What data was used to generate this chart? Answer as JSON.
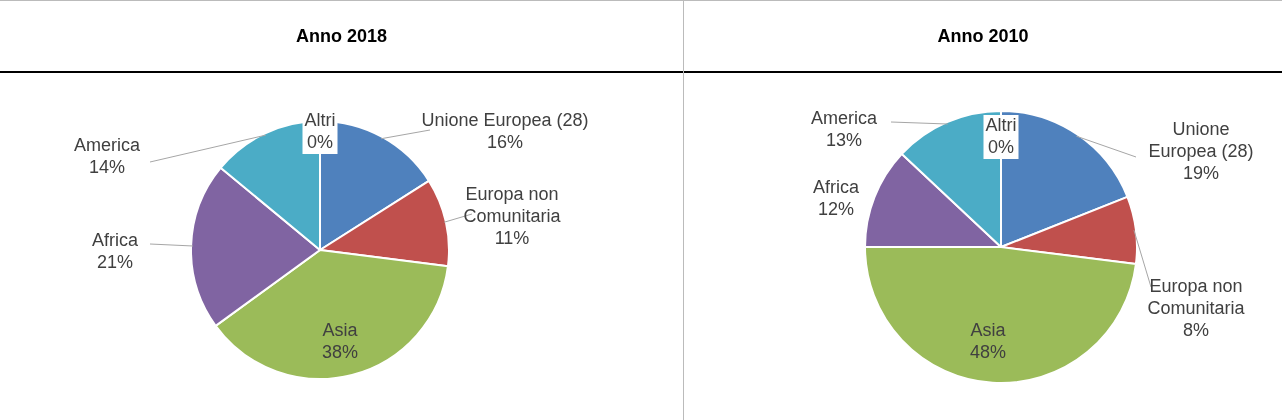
{
  "chart_data": [
    {
      "type": "pie",
      "title": "Anno 2018",
      "categories": [
        "Unione Europea (28)",
        "Europa non Comunitaria",
        "Asia",
        "Africa",
        "America",
        "Altri"
      ],
      "values": [
        16,
        11,
        38,
        21,
        14,
        0
      ],
      "value_labels": [
        "16%",
        "11%",
        "38%",
        "21%",
        "14%",
        "0%"
      ],
      "colors": [
        "#4f81bd",
        "#c0504d",
        "#9bbb59",
        "#8064a2",
        "#4bacc6",
        "#f79646"
      ],
      "legend": false
    },
    {
      "type": "pie",
      "title": "Anno 2010",
      "categories": [
        "Unione Europea (28)",
        "Europa non Comunitaria",
        "Asia",
        "Africa",
        "America",
        "Altri"
      ],
      "values": [
        19,
        8,
        48,
        12,
        13,
        0
      ],
      "value_labels": [
        "19%",
        "8%",
        "48%",
        "12%",
        "13%",
        "0%"
      ],
      "colors": [
        "#4f81bd",
        "#c0504d",
        "#9bbb59",
        "#8064a2",
        "#4bacc6",
        "#f79646"
      ],
      "legend": false
    }
  ]
}
